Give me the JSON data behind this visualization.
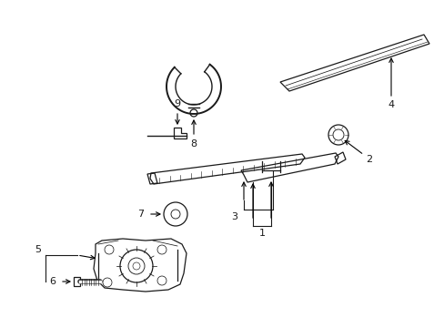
{
  "bg_color": "#ffffff",
  "line_color": "#1a1a1a",
  "parts": {
    "blade_label": "4",
    "cap_label": "2",
    "arm_label": "1",
    "pivot_label": "3",
    "motor_label": "5",
    "bolt_label": "6",
    "disc_label": "7",
    "hose_label": "8",
    "nozzle_label": "9"
  },
  "figsize": [
    4.89,
    3.6
  ],
  "dpi": 100
}
